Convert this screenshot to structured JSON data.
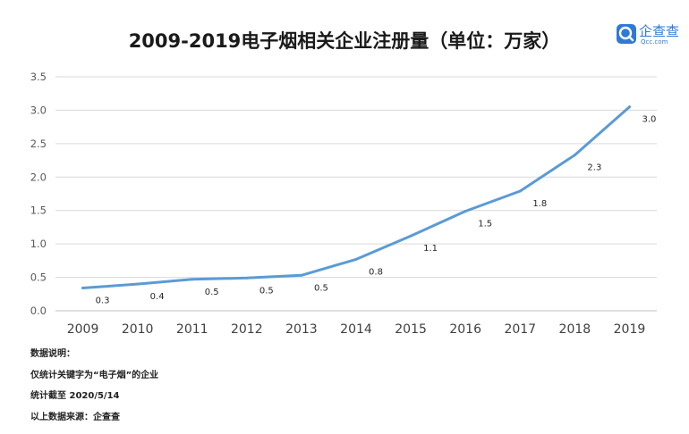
{
  "brand": {
    "name": "企查查",
    "domain": "Qcc.com",
    "icon": "qcc-logo-icon",
    "color": "#2e7ad6"
  },
  "chart_data": {
    "type": "line",
    "title": "2009-2019电子烟相关企业注册量（单位：万家）",
    "categories": [
      "2009",
      "2010",
      "2011",
      "2012",
      "2013",
      "2014",
      "2015",
      "2016",
      "2017",
      "2018",
      "2019"
    ],
    "series": [
      {
        "values": [
          0.34,
          0.4,
          0.47,
          0.49,
          0.53,
          0.77,
          1.12,
          1.49,
          1.79,
          2.33,
          3.05
        ],
        "labels": [
          "0.3",
          "0.4",
          "0.5",
          "0.5",
          "0.5",
          "0.8",
          "1.1",
          "1.5",
          "1.8",
          "2.3",
          "3.0"
        ],
        "color": "#5b9bd5"
      }
    ],
    "ylim": [
      0,
      3.5
    ],
    "yticks": [
      "0.0",
      "0.5",
      "1.0",
      "1.5",
      "2.0",
      "2.5",
      "3.0",
      "3.5"
    ],
    "grid": true,
    "xlabel": "",
    "ylabel": ""
  },
  "notes": [
    "数据说明：",
    "仅统计关键字为“电子烟”的企业",
    "统计截至 2020/5/14",
    "以上数据来源：企查查"
  ]
}
